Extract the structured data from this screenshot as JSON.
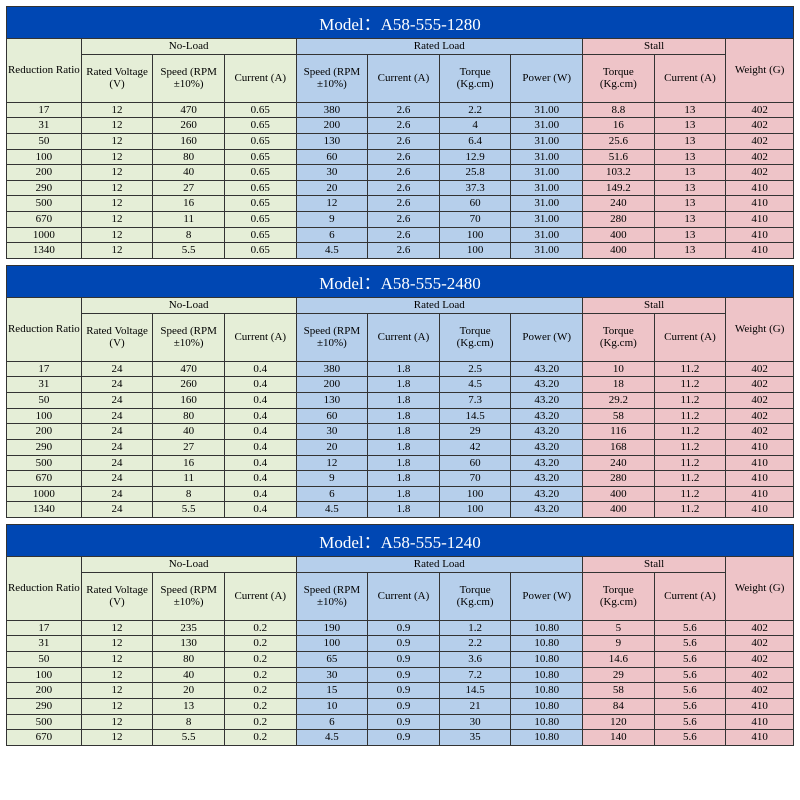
{
  "colors": {
    "title_bg": "#0047b3",
    "title_fg": "#ffffff",
    "noload_bg": "#e5eed7",
    "rated_bg": "#b6cfeb",
    "stall_bg": "#eec4c8",
    "border": "#333333"
  },
  "col_widths_pct": [
    9.5,
    9.1,
    9.1,
    9.1,
    9.1,
    9.1,
    9.1,
    9.1,
    9.1,
    9.1,
    8.6
  ],
  "groups": {
    "noload": "No-Load",
    "rated": "Rated Load",
    "stall": "Stall"
  },
  "headers": {
    "ratio": "Reduction Ratio",
    "rated_voltage": "Rated Voltage (V)",
    "nl_speed": "Speed (RPM ±10%)",
    "nl_current": "Current (A)",
    "rl_speed": "Speed (RPM ±10%)",
    "rl_current": "Current (A)",
    "rl_torque": "Torque (Kg.cm)",
    "rl_power": "Power (W)",
    "st_torque": "Torque (Kg.cm)",
    "st_current": "Current (A)",
    "weight": "Weight (G)"
  },
  "models": [
    {
      "title": "Model：A58-555-1280",
      "rows": [
        [
          "17",
          "12",
          "470",
          "0.65",
          "380",
          "2.6",
          "2.2",
          "31.00",
          "8.8",
          "13",
          "402"
        ],
        [
          "31",
          "12",
          "260",
          "0.65",
          "200",
          "2.6",
          "4",
          "31.00",
          "16",
          "13",
          "402"
        ],
        [
          "50",
          "12",
          "160",
          "0.65",
          "130",
          "2.6",
          "6.4",
          "31.00",
          "25.6",
          "13",
          "402"
        ],
        [
          "100",
          "12",
          "80",
          "0.65",
          "60",
          "2.6",
          "12.9",
          "31.00",
          "51.6",
          "13",
          "402"
        ],
        [
          "200",
          "12",
          "40",
          "0.65",
          "30",
          "2.6",
          "25.8",
          "31.00",
          "103.2",
          "13",
          "402"
        ],
        [
          "290",
          "12",
          "27",
          "0.65",
          "20",
          "2.6",
          "37.3",
          "31.00",
          "149.2",
          "13",
          "410"
        ],
        [
          "500",
          "12",
          "16",
          "0.65",
          "12",
          "2.6",
          "60",
          "31.00",
          "240",
          "13",
          "410"
        ],
        [
          "670",
          "12",
          "11",
          "0.65",
          "9",
          "2.6",
          "70",
          "31.00",
          "280",
          "13",
          "410"
        ],
        [
          "1000",
          "12",
          "8",
          "0.65",
          "6",
          "2.6",
          "100",
          "31.00",
          "400",
          "13",
          "410"
        ],
        [
          "1340",
          "12",
          "5.5",
          "0.65",
          "4.5",
          "2.6",
          "100",
          "31.00",
          "400",
          "13",
          "410"
        ]
      ]
    },
    {
      "title": "Model：A58-555-2480",
      "rows": [
        [
          "17",
          "24",
          "470",
          "0.4",
          "380",
          "1.8",
          "2.5",
          "43.20",
          "10",
          "11.2",
          "402"
        ],
        [
          "31",
          "24",
          "260",
          "0.4",
          "200",
          "1.8",
          "4.5",
          "43.20",
          "18",
          "11.2",
          "402"
        ],
        [
          "50",
          "24",
          "160",
          "0.4",
          "130",
          "1.8",
          "7.3",
          "43.20",
          "29.2",
          "11.2",
          "402"
        ],
        [
          "100",
          "24",
          "80",
          "0.4",
          "60",
          "1.8",
          "14.5",
          "43.20",
          "58",
          "11.2",
          "402"
        ],
        [
          "200",
          "24",
          "40",
          "0.4",
          "30",
          "1.8",
          "29",
          "43.20",
          "116",
          "11.2",
          "402"
        ],
        [
          "290",
          "24",
          "27",
          "0.4",
          "20",
          "1.8",
          "42",
          "43.20",
          "168",
          "11.2",
          "410"
        ],
        [
          "500",
          "24",
          "16",
          "0.4",
          "12",
          "1.8",
          "60",
          "43.20",
          "240",
          "11.2",
          "410"
        ],
        [
          "670",
          "24",
          "11",
          "0.4",
          "9",
          "1.8",
          "70",
          "43.20",
          "280",
          "11.2",
          "410"
        ],
        [
          "1000",
          "24",
          "8",
          "0.4",
          "6",
          "1.8",
          "100",
          "43.20",
          "400",
          "11.2",
          "410"
        ],
        [
          "1340",
          "24",
          "5.5",
          "0.4",
          "4.5",
          "1.8",
          "100",
          "43.20",
          "400",
          "11.2",
          "410"
        ]
      ]
    },
    {
      "title": "Model：A58-555-1240",
      "rows": [
        [
          "17",
          "12",
          "235",
          "0.2",
          "190",
          "0.9",
          "1.2",
          "10.80",
          "5",
          "5.6",
          "402"
        ],
        [
          "31",
          "12",
          "130",
          "0.2",
          "100",
          "0.9",
          "2.2",
          "10.80",
          "9",
          "5.6",
          "402"
        ],
        [
          "50",
          "12",
          "80",
          "0.2",
          "65",
          "0.9",
          "3.6",
          "10.80",
          "14.6",
          "5.6",
          "402"
        ],
        [
          "100",
          "12",
          "40",
          "0.2",
          "30",
          "0.9",
          "7.2",
          "10.80",
          "29",
          "5.6",
          "402"
        ],
        [
          "200",
          "12",
          "20",
          "0.2",
          "15",
          "0.9",
          "14.5",
          "10.80",
          "58",
          "5.6",
          "402"
        ],
        [
          "290",
          "12",
          "13",
          "0.2",
          "10",
          "0.9",
          "21",
          "10.80",
          "84",
          "5.6",
          "410"
        ],
        [
          "500",
          "12",
          "8",
          "0.2",
          "6",
          "0.9",
          "30",
          "10.80",
          "120",
          "5.6",
          "410"
        ],
        [
          "670",
          "12",
          "5.5",
          "0.2",
          "4.5",
          "0.9",
          "35",
          "10.80",
          "140",
          "5.6",
          "410"
        ]
      ]
    }
  ]
}
